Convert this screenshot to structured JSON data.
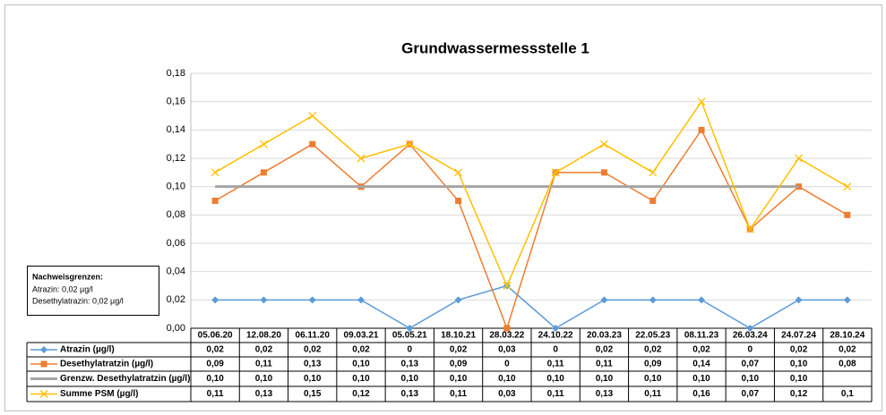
{
  "chart_data": {
    "type": "line",
    "title": "Grundwassermessstelle 1",
    "categories": [
      "05.06.20",
      "12.08.20",
      "06.11.20",
      "09.03.21",
      "05.05.21",
      "18.10.21",
      "28.03.22",
      "24.10.22",
      "20.03.23",
      "22.05.23",
      "08.11.23",
      "26.03.24",
      "24.07.24",
      "28.10.24"
    ],
    "ylim": [
      0,
      0.18
    ],
    "yticks": [
      {
        "value": 0,
        "label": "0,00"
      },
      {
        "value": 0.02,
        "label": "0,02"
      },
      {
        "value": 0.04,
        "label": "0,04"
      },
      {
        "value": 0.06,
        "label": "0,06"
      },
      {
        "value": 0.08,
        "label": "0,08"
      },
      {
        "value": 0.1,
        "label": "0,10"
      },
      {
        "value": 0.12,
        "label": "0,12"
      },
      {
        "value": 0.14,
        "label": "0,14"
      },
      {
        "value": 0.16,
        "label": "0,16"
      },
      {
        "value": 0.18,
        "label": "0,18"
      }
    ],
    "grid": true,
    "series": [
      {
        "name": "Atrazin (µg/l)",
        "color": "#5b9bd5",
        "marker": "diamond",
        "values": [
          0.02,
          0.02,
          0.02,
          0.02,
          0,
          0.02,
          0.03,
          0,
          0.02,
          0.02,
          0.02,
          0,
          0.02,
          0.02
        ],
        "value_labels": [
          "0,02",
          "0,02",
          "0,02",
          "0,02",
          "0",
          "0,02",
          "0,03",
          "0",
          "0,02",
          "0,02",
          "0,02",
          "0",
          "0,02",
          "0,02"
        ]
      },
      {
        "name": "Desethylatratzin (µg/l)",
        "color": "#ed7d31",
        "marker": "square",
        "values": [
          0.09,
          0.11,
          0.13,
          0.1,
          0.13,
          0.09,
          0,
          0.11,
          0.11,
          0.09,
          0.14,
          0.07,
          0.1,
          0.08
        ],
        "value_labels": [
          "0,09",
          "0,11",
          "0,13",
          "0,10",
          "0,13",
          "0,09",
          "0",
          "0,11",
          "0,11",
          "0,09",
          "0,14",
          "0,07",
          "0,10",
          "0,08"
        ]
      },
      {
        "name": "Grenzw. Desethylatratzin (µg/l)",
        "color": "#a5a5a5",
        "marker": "none",
        "values": [
          0.1,
          0.1,
          0.1,
          0.1,
          0.1,
          0.1,
          0.1,
          0.1,
          0.1,
          0.1,
          0.1,
          0.1,
          0.1,
          null
        ],
        "value_labels": [
          "0,10",
          "0,10",
          "0,10",
          "0,10",
          "0,10",
          "0,10",
          "0,10",
          "0,10",
          "0,10",
          "0,10",
          "0,10",
          "0,10",
          "0,10",
          null
        ]
      },
      {
        "name": "Summe PSM (µg/l)",
        "color": "#ffc000",
        "marker": "x",
        "values": [
          0.11,
          0.13,
          0.15,
          0.12,
          0.13,
          0.11,
          0.03,
          0.11,
          0.13,
          0.11,
          0.16,
          0.07,
          0.12,
          0.1
        ],
        "value_labels": [
          "0,11",
          "0,13",
          "0,15",
          "0,12",
          "0,13",
          "0,11",
          "0,03",
          "0,11",
          "0,13",
          "0,11",
          "0,16",
          "0,07",
          "0,12",
          "0,1"
        ]
      }
    ],
    "note": {
      "title": "Nachweisgrenzen:",
      "lines": [
        "Atrazin: 0,02 µg/l",
        "Desethylatrazin: 0,02 µg/l"
      ]
    }
  }
}
